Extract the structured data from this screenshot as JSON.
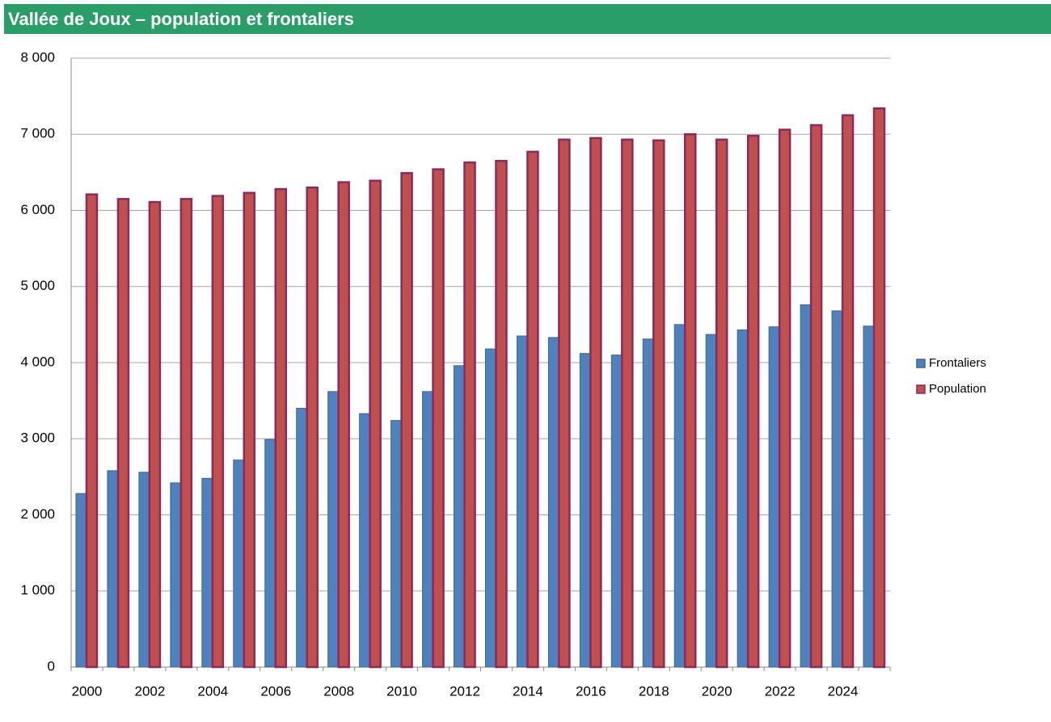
{
  "chart_data": {
    "type": "bar",
    "title": "Vallée de Joux – population et frontaliers",
    "categories": [
      "2000",
      null,
      "2002",
      null,
      "2004",
      null,
      "2006",
      null,
      "2008",
      null,
      "2010",
      null,
      "2012",
      null,
      "2014",
      null,
      "2016",
      null,
      "2018",
      null,
      "2020",
      null,
      "2022",
      null,
      "2024",
      null
    ],
    "series": [
      {
        "name": "Frontaliers",
        "color": "#4f81bd",
        "values": [
          2280,
          2580,
          2560,
          2420,
          2480,
          2720,
          2990,
          3400,
          3620,
          3330,
          3240,
          3620,
          3960,
          4180,
          4350,
          4330,
          4120,
          4100,
          4310,
          4500,
          4370,
          4430,
          4470,
          4760,
          4680,
          4480
        ]
      },
      {
        "name": "Population",
        "color": "#c0504d",
        "values": [
          6210,
          6150,
          6110,
          6150,
          6190,
          6230,
          6280,
          6300,
          6370,
          6390,
          6490,
          6540,
          6630,
          6650,
          6770,
          6930,
          6950,
          6930,
          6920,
          7000,
          6930,
          6980,
          7060,
          7120,
          7250,
          7340
        ]
      }
    ],
    "ylim": [
      0,
      8000
    ],
    "yticks": [
      0,
      {
        "value": 1000,
        "label": "1 000"
      },
      {
        "value": 2000,
        "label": "2 000"
      },
      {
        "value": 3000,
        "label": "3 000"
      },
      {
        "value": 4000,
        "label": "4 000"
      },
      {
        "value": 5000,
        "label": "5 000"
      },
      {
        "value": 6000,
        "label": "6 000"
      },
      {
        "value": 7000,
        "label": "7 000"
      },
      {
        "value": 8000,
        "label": "8 000"
      }
    ],
    "grid": true,
    "legend": "right"
  }
}
